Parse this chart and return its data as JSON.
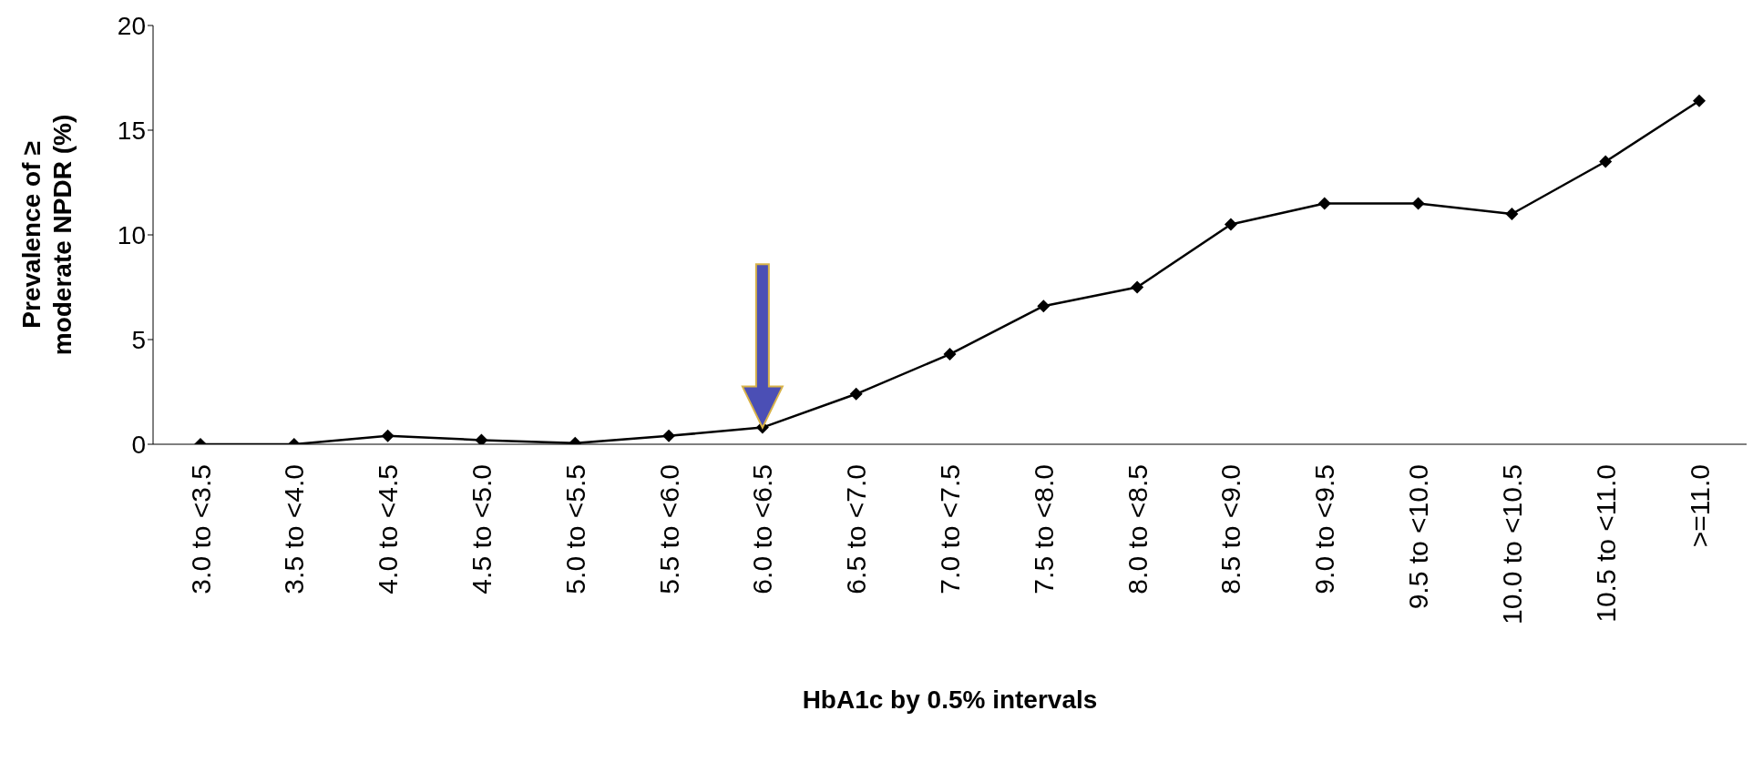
{
  "chart_data": {
    "type": "line",
    "xlabel": "HbA1c by 0.5% intervals",
    "ylabel": "Prevalence of ≥ moderate NPDR (%)",
    "categories": [
      "3.0 to <3.5",
      "3.5 to <4.0",
      "4.0 to <4.5",
      "4.5 to <5.0",
      "5.0 to <5.5",
      "5.5 to <6.0",
      "6.0 to <6.5",
      "6.5 to <7.0",
      "7.0 to <7.5",
      "7.5 to <8.0",
      "8.0 to <8.5",
      "8.5 to <9.0",
      "9.0 to <9.5",
      "9.5 to <10.0",
      "10.0 to <10.5",
      "10.5 to <11.0",
      ">=11.0"
    ],
    "series": [
      {
        "color": "#000000",
        "values": [
          0,
          0,
          0.4,
          0.2,
          0.05,
          0.4,
          0.8,
          2.4,
          4.3,
          6.6,
          7.5,
          10.5,
          11.5,
          11.5,
          11.0,
          13.5,
          16.4
        ]
      }
    ],
    "ylim": [
      0,
      20
    ],
    "yticks": [
      0,
      5,
      10,
      15,
      20
    ],
    "marker": "diamond",
    "line_style": "solid",
    "grid": false,
    "legend": false
  }
}
